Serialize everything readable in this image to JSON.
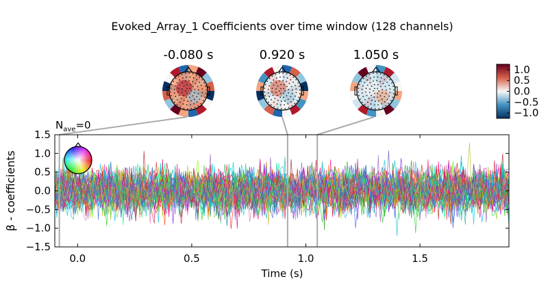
{
  "figure": {
    "title": "Evoked_Array_1 Coefficients over time window (128 channels)"
  },
  "topomaps": [
    {
      "time_label": "-0.080 s",
      "time": -0.08
    },
    {
      "time_label": "0.920 s",
      "time": 0.92
    },
    {
      "time_label": "1.050 s",
      "time": 1.05
    }
  ],
  "colorbar": {
    "tick_labels": [
      "1.0",
      "0.5",
      "0.0",
      "−0.5",
      "−1.0"
    ],
    "ticks": [
      1.0,
      0.5,
      0.0,
      -0.5,
      -1.0
    ],
    "range": [
      -1.25,
      1.25
    ],
    "colors": {
      "top": "#67001f",
      "upper": "#d6604d",
      "mid": "#f7f7f7",
      "lower": "#4393c3",
      "bottom": "#053061"
    }
  },
  "nave": {
    "text": "=0",
    "subscript": "ave",
    "prefix": "N"
  },
  "chart_data": {
    "type": "line",
    "title": "",
    "xlabel": "Time (s)",
    "ylabel": "β - coefficients",
    "xlim": [
      -0.1,
      1.89
    ],
    "ylim": [
      -1.5,
      1.5
    ],
    "x_ticks": [
      0.0,
      0.5,
      1.0,
      1.5
    ],
    "x_tick_labels": [
      "0.0",
      "0.5",
      "1.0",
      "1.5"
    ],
    "y_ticks": [
      1.5,
      1.0,
      0.5,
      0.0,
      -0.5,
      -1.0,
      -1.5
    ],
    "y_tick_labels": [
      "1.5",
      "1.0",
      "0.5",
      "0.0",
      "−0.5",
      "−1.0",
      "−1.5"
    ],
    "grid": false,
    "legend": "sensor-position inset, top-left",
    "n_channels": 128,
    "series_style": "128 noise traces colored by sensor position (random coefficients, std ~0.3)",
    "time_markers": [
      -0.08,
      0.92,
      1.05
    ]
  }
}
